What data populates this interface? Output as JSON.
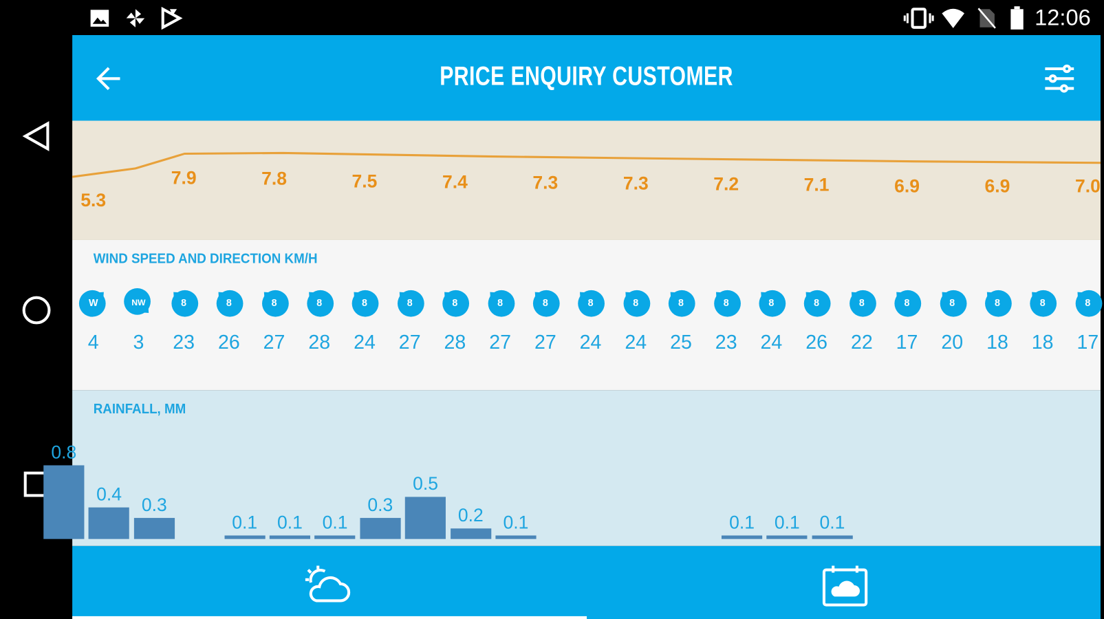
{
  "status_bar": {
    "time": "12:06",
    "left_icons": [
      "image-icon",
      "pinwheel-icon",
      "play-store-icon"
    ],
    "right_icons": [
      "vibrate-icon",
      "wifi-icon",
      "no-sim-icon",
      "battery-icon"
    ]
  },
  "nav_bar": {
    "icons": [
      "back-triangle-icon",
      "home-circle-icon",
      "recents-square-icon"
    ]
  },
  "header": {
    "title": "PRICE ENQUIRY CUSTOMER",
    "back_icon": "arrow-left-icon",
    "filter_icon": "sliders-icon"
  },
  "colors": {
    "primary": "#03a9e9",
    "temp_line": "#e8901a",
    "bar": "#4a86b8",
    "label_blue": "#1ea5e0"
  },
  "temperature": {
    "labels": [
      "5.3",
      "7.9",
      "7.8",
      "7.5",
      "7.4",
      "7.3",
      "7.3",
      "7.2",
      "7.1",
      "6.9",
      "6.9",
      "7.0"
    ]
  },
  "wind": {
    "title": "WIND SPEED AND DIRECTION KM/H",
    "directions": [
      "W",
      "NW",
      "8",
      "8",
      "8",
      "8",
      "8",
      "8",
      "8",
      "8",
      "8",
      "8",
      "8",
      "8",
      "8",
      "8",
      "8",
      "8",
      "8",
      "8",
      "8",
      "8",
      "8"
    ],
    "speeds": [
      "4",
      "3",
      "23",
      "26",
      "27",
      "28",
      "24",
      "27",
      "28",
      "27",
      "27",
      "24",
      "24",
      "25",
      "23",
      "24",
      "26",
      "22",
      "17",
      "20",
      "18",
      "18",
      "17"
    ]
  },
  "rain": {
    "title": "RAINFALL, MM",
    "values": [
      0.8,
      0.4,
      0.3,
      null,
      0.1,
      0.1,
      0.1,
      0.3,
      0.5,
      0.2,
      0.1,
      null,
      null,
      null,
      null,
      0.1,
      0.1,
      0.1,
      null,
      null,
      null,
      null,
      null
    ],
    "labels": [
      "0.8",
      "0.4",
      "0.3",
      "",
      "0.1",
      "0.1",
      "0.1",
      "0.3",
      "0.5",
      "0.2",
      "0.1",
      "",
      "",
      "",
      "",
      "0.1",
      "0.1",
      "0.1",
      "",
      "",
      "",
      "",
      ""
    ]
  },
  "bottom_nav": {
    "tabs": [
      {
        "icon": "weather-sun-cloud-icon",
        "selected": true
      },
      {
        "icon": "calendar-cloud-icon",
        "selected": false
      }
    ]
  }
}
